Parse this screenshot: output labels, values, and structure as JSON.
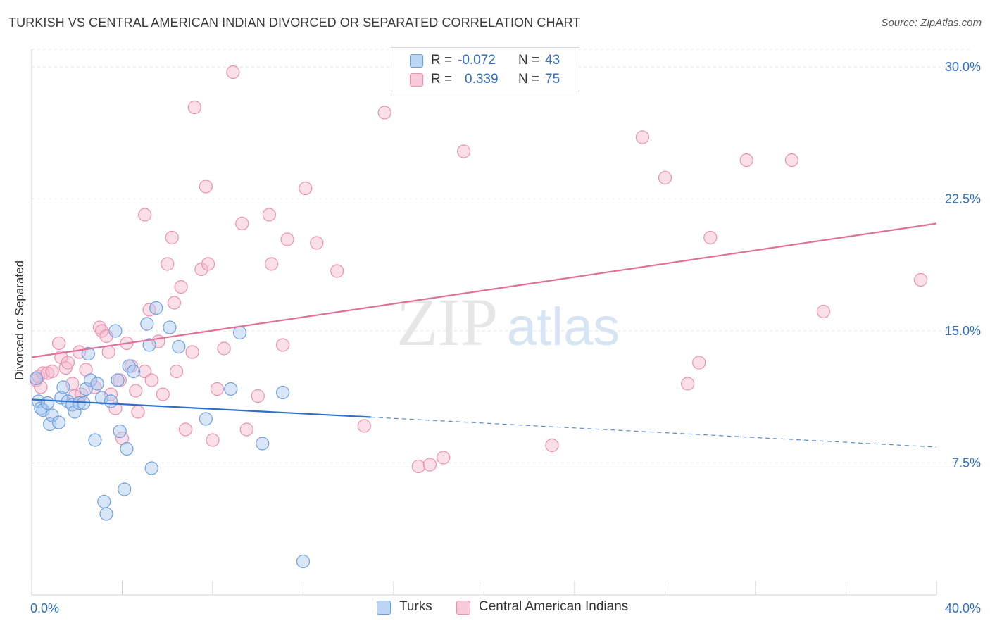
{
  "title": "TURKISH VS CENTRAL AMERICAN INDIAN DIVORCED OR SEPARATED CORRELATION CHART",
  "source": "Source: ZipAtlas.com",
  "watermark": {
    "zip": "ZIP",
    "atlas": "atlas"
  },
  "colors": {
    "blue_fill": "#a9c8f0",
    "blue_stroke": "#6d9fe0",
    "blue_line": "#2d6fcb",
    "pink_fill": "#f6b8cb",
    "pink_stroke": "#ee8fb0",
    "pink_line": "#e0709a",
    "tick_text": "#2f6fc6",
    "grid": "#e3e3e3"
  },
  "legend": {
    "rows": [
      {
        "r_label": "R =",
        "r_value": "-0.072",
        "n_label": "N =",
        "n_value": "43"
      },
      {
        "r_label": "R =",
        "r_value": "0.339",
        "n_label": "N =",
        "n_value": "75"
      }
    ]
  },
  "bottom_legend": {
    "series1": "Turks",
    "series2": "Central American Indians"
  },
  "chart_data": {
    "type": "scatter",
    "ylabel": "Divorced or Separated",
    "xlim": [
      0,
      40
    ],
    "ylim": [
      0,
      31
    ],
    "x_tick_labels": [
      "0.0%",
      "40.0%"
    ],
    "y_ticks": [
      7.5,
      15.0,
      22.5,
      30.0
    ],
    "y_tick_labels": [
      "7.5%",
      "15.0%",
      "22.5%",
      "30.0%"
    ],
    "grid": true,
    "series": [
      {
        "name": "Turks",
        "trend": {
          "x": [
            0.0,
            15.0
          ],
          "y": [
            11.1,
            10.1
          ],
          "dashed_to_x": 40.0,
          "dashed_end_y": 8.4
        },
        "points": [
          [
            0.2,
            12.3
          ],
          [
            0.3,
            11.0
          ],
          [
            0.4,
            10.6
          ],
          [
            0.5,
            10.5
          ],
          [
            0.7,
            10.9
          ],
          [
            0.8,
            9.7
          ],
          [
            0.9,
            10.2
          ],
          [
            1.2,
            9.8
          ],
          [
            1.3,
            11.2
          ],
          [
            1.4,
            11.8
          ],
          [
            1.6,
            11.0
          ],
          [
            1.8,
            10.8
          ],
          [
            1.9,
            10.4
          ],
          [
            2.1,
            10.9
          ],
          [
            2.3,
            10.9
          ],
          [
            2.4,
            11.7
          ],
          [
            2.5,
            13.7
          ],
          [
            2.6,
            12.2
          ],
          [
            2.8,
            8.8
          ],
          [
            2.9,
            12.0
          ],
          [
            3.1,
            11.2
          ],
          [
            3.2,
            5.3
          ],
          [
            3.3,
            4.6
          ],
          [
            3.5,
            11.0
          ],
          [
            3.7,
            15.0
          ],
          [
            3.8,
            12.2
          ],
          [
            3.9,
            9.3
          ],
          [
            4.1,
            6.0
          ],
          [
            4.2,
            8.3
          ],
          [
            4.3,
            13.0
          ],
          [
            4.5,
            12.7
          ],
          [
            5.1,
            15.4
          ],
          [
            5.2,
            14.2
          ],
          [
            5.3,
            7.2
          ],
          [
            5.5,
            16.3
          ],
          [
            6.1,
            15.2
          ],
          [
            6.5,
            14.1
          ],
          [
            7.7,
            10.0
          ],
          [
            8.8,
            11.7
          ],
          [
            9.2,
            14.9
          ],
          [
            10.2,
            8.6
          ],
          [
            11.1,
            11.5
          ],
          [
            12.0,
            1.9
          ]
        ]
      },
      {
        "name": "Central American Indians",
        "trend": {
          "x": [
            0.0,
            40.0
          ],
          "y": [
            13.5,
            21.1
          ]
        },
        "points": [
          [
            0.2,
            12.2
          ],
          [
            0.3,
            12.4
          ],
          [
            0.4,
            11.8
          ],
          [
            0.5,
            12.6
          ],
          [
            0.7,
            12.6
          ],
          [
            0.9,
            12.7
          ],
          [
            1.2,
            14.3
          ],
          [
            1.3,
            13.5
          ],
          [
            1.5,
            12.9
          ],
          [
            1.6,
            13.2
          ],
          [
            1.8,
            12.0
          ],
          [
            1.9,
            11.3
          ],
          [
            2.1,
            13.8
          ],
          [
            2.2,
            11.4
          ],
          [
            2.4,
            12.8
          ],
          [
            2.8,
            11.8
          ],
          [
            3.0,
            15.2
          ],
          [
            3.1,
            15.0
          ],
          [
            3.3,
            14.7
          ],
          [
            3.4,
            13.8
          ],
          [
            3.5,
            11.4
          ],
          [
            3.7,
            10.6
          ],
          [
            3.9,
            12.2
          ],
          [
            4.0,
            8.9
          ],
          [
            4.2,
            14.3
          ],
          [
            4.4,
            13.0
          ],
          [
            4.6,
            11.6
          ],
          [
            4.7,
            10.4
          ],
          [
            5.0,
            12.7
          ],
          [
            5.0,
            21.6
          ],
          [
            5.2,
            16.2
          ],
          [
            5.3,
            12.2
          ],
          [
            5.6,
            14.4
          ],
          [
            5.8,
            11.4
          ],
          [
            6.0,
            18.8
          ],
          [
            6.2,
            20.3
          ],
          [
            6.3,
            16.6
          ],
          [
            6.4,
            12.7
          ],
          [
            6.6,
            17.5
          ],
          [
            6.8,
            9.4
          ],
          [
            7.1,
            13.8
          ],
          [
            7.2,
            27.7
          ],
          [
            7.5,
            18.5
          ],
          [
            7.7,
            23.2
          ],
          [
            7.8,
            18.8
          ],
          [
            8.0,
            8.8
          ],
          [
            8.2,
            11.7
          ],
          [
            8.5,
            14.0
          ],
          [
            8.9,
            29.7
          ],
          [
            9.3,
            21.1
          ],
          [
            9.5,
            9.4
          ],
          [
            10.0,
            11.3
          ],
          [
            10.5,
            21.6
          ],
          [
            10.6,
            18.8
          ],
          [
            11.1,
            14.2
          ],
          [
            11.3,
            20.2
          ],
          [
            12.1,
            23.1
          ],
          [
            12.6,
            20.0
          ],
          [
            13.5,
            18.4
          ],
          [
            14.7,
            9.6
          ],
          [
            15.6,
            27.4
          ],
          [
            17.1,
            7.3
          ],
          [
            17.6,
            7.4
          ],
          [
            18.2,
            7.8
          ],
          [
            19.1,
            25.2
          ],
          [
            23.0,
            8.5
          ],
          [
            27.0,
            26.0
          ],
          [
            28.0,
            23.7
          ],
          [
            29.0,
            12.0
          ],
          [
            29.5,
            13.2
          ],
          [
            30.0,
            20.3
          ],
          [
            31.6,
            24.7
          ],
          [
            33.6,
            24.7
          ],
          [
            35.0,
            16.1
          ],
          [
            39.3,
            17.9
          ]
        ]
      }
    ]
  }
}
